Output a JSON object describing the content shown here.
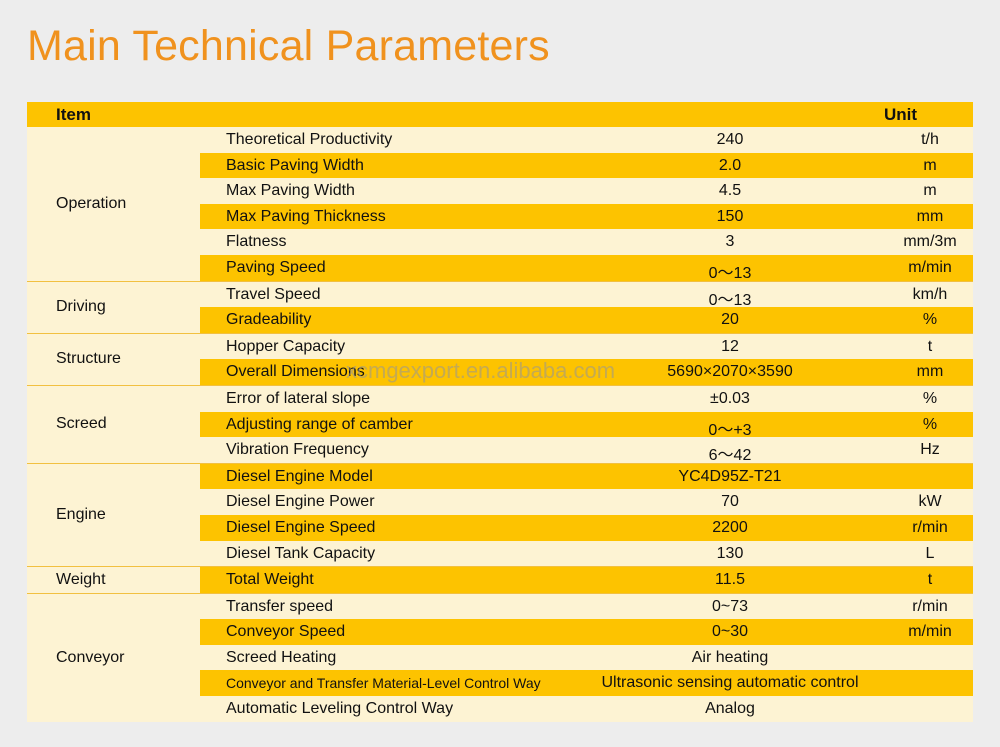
{
  "title": "Main Technical Parameters",
  "header": {
    "item": "Item",
    "unit": "Unit"
  },
  "watermark": "xcmgexport.en.alibaba.com",
  "groups": [
    {
      "category": "Operation",
      "rows": [
        {
          "param": "Theoretical Productivity",
          "value": "240",
          "unit": "t/h"
        },
        {
          "param": "Basic Paving Width",
          "value": "2.0",
          "unit": "m"
        },
        {
          "param": "Max Paving Width",
          "value": "4.5",
          "unit": "m"
        },
        {
          "param": "Max Paving Thickness",
          "value": "150",
          "unit": "mm"
        },
        {
          "param": "Flatness",
          "value": "3",
          "unit": "mm/3m"
        },
        {
          "param": "Paving Speed",
          "value": "0～13",
          "unit": "m/min"
        }
      ]
    },
    {
      "category": "Driving",
      "rows": [
        {
          "param": "Travel Speed",
          "value": "0～13",
          "unit": "km/h"
        },
        {
          "param": "Gradeability",
          "value": "20",
          "unit": "%"
        }
      ]
    },
    {
      "category": "Structure",
      "rows": [
        {
          "param": "Hopper Capacity",
          "value": "12",
          "unit": "t"
        },
        {
          "param": "Overall Dimensions",
          "value": "5690×2070×3590",
          "unit": "mm"
        }
      ]
    },
    {
      "category": "Screed",
      "rows": [
        {
          "param": "Error of lateral slope",
          "value": "±0.03",
          "unit": "%"
        },
        {
          "param": "Adjusting range of camber",
          "value": "0～+3",
          "unit": "%"
        },
        {
          "param": "Vibration Frequency",
          "value": "6～42",
          "unit": "Hz"
        }
      ]
    },
    {
      "category": "Engine",
      "rows": [
        {
          "param": "Diesel Engine Model",
          "value": "YC4D95Z-T21",
          "unit": ""
        },
        {
          "param": "Diesel Engine Power",
          "value": "70",
          "unit": "kW"
        },
        {
          "param": "Diesel Engine Speed",
          "value": "2200",
          "unit": "r/min"
        },
        {
          "param": "Diesel Tank Capacity",
          "value": "130",
          "unit": "L"
        }
      ]
    },
    {
      "category": "Weight",
      "rows": [
        {
          "param": "Total Weight",
          "value": "11.5",
          "unit": "t"
        }
      ]
    },
    {
      "category": "Conveyor",
      "rows": [
        {
          "param": "Transfer speed",
          "value": "0~73",
          "unit": "r/min"
        },
        {
          "param": "Conveyor Speed",
          "value": "0~30",
          "unit": "m/min"
        },
        {
          "param": "Screed Heating",
          "value": "Air heating",
          "unit": ""
        },
        {
          "param": "Conveyor and Transfer Material-Level Control Way",
          "value": "Ultrasonic sensing automatic control",
          "unit": ""
        },
        {
          "param": "Automatic Leveling Control Way",
          "value": "Analog",
          "unit": ""
        }
      ]
    }
  ],
  "colors": {
    "title": "#f0921e",
    "stripe": "#fdc300",
    "light": "#fdf3d3",
    "background": "#ededed"
  }
}
